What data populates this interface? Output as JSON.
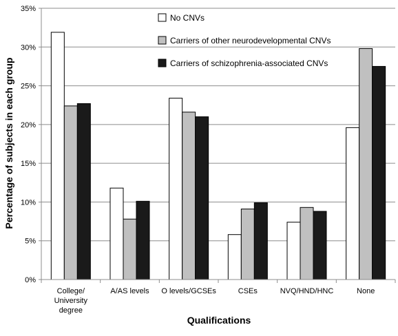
{
  "chart_data": {
    "type": "bar",
    "xlabel": "Qualifications",
    "ylabel": "Percentage of subjects in each group",
    "ylim": [
      0,
      35
    ],
    "yticks": [
      "0%",
      "5%",
      "10%",
      "15%",
      "20%",
      "25%",
      "30%",
      "35%"
    ],
    "grid": true,
    "legend_position": "top-right",
    "categories": [
      [
        "College/",
        "University",
        "degree"
      ],
      [
        "A/AS levels"
      ],
      [
        "O levels/GCSEs"
      ],
      [
        "CSEs"
      ],
      [
        "NVQ/HND/HNC"
      ],
      [
        "None"
      ]
    ],
    "series": [
      {
        "name": "No CNVs",
        "color": "#ffffff",
        "values": [
          31.9,
          11.8,
          23.4,
          5.8,
          7.4,
          19.6
        ]
      },
      {
        "name": "Carriers of other neurodevelopmental CNVs",
        "color": "#c0c0c0",
        "values": [
          22.4,
          7.8,
          21.6,
          9.1,
          9.3,
          29.8
        ]
      },
      {
        "name": "Carriers of schizophrenia-associated CNVs",
        "color": "#1a1a1a",
        "values": [
          22.7,
          10.1,
          21.0,
          9.9,
          8.8,
          27.5
        ]
      }
    ]
  }
}
